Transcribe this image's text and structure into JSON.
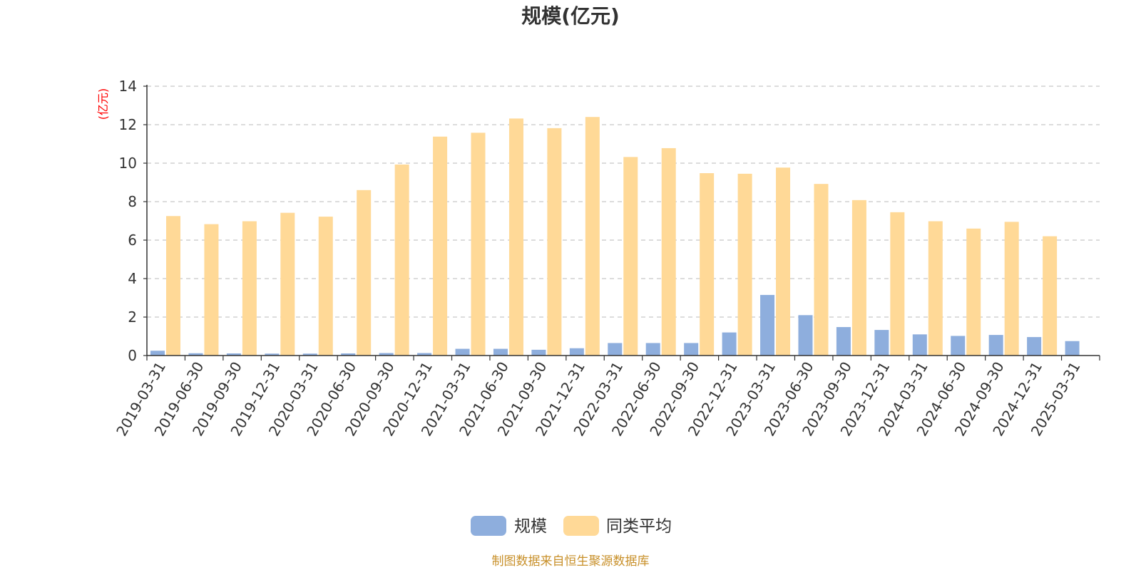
{
  "chart_data": {
    "type": "bar",
    "title": "规模(亿元)",
    "unit_label": "(亿元)",
    "source": "制图数据来自恒生聚源数据库",
    "categories": [
      "2019-03-31",
      "2019-06-30",
      "2019-09-30",
      "2019-12-31",
      "2020-03-31",
      "2020-06-30",
      "2020-09-30",
      "2020-12-31",
      "2021-03-31",
      "2021-06-30",
      "2021-09-30",
      "2021-12-31",
      "2022-03-31",
      "2022-06-30",
      "2022-09-30",
      "2022-12-31",
      "2023-03-31",
      "2023-06-30",
      "2023-09-30",
      "2023-12-31",
      "2024-03-31",
      "2024-06-30",
      "2024-09-30",
      "2024-12-31",
      "2025-03-31"
    ],
    "ylim": [
      0,
      14
    ],
    "yticks": [
      0,
      2,
      4,
      6,
      8,
      10,
      12,
      14
    ],
    "grid": true,
    "legend_position": "bottom-center",
    "series": [
      {
        "name": "规模",
        "color": "#8eaedd",
        "values": [
          0.25,
          0.12,
          0.11,
          0.1,
          0.1,
          0.11,
          0.13,
          0.13,
          0.35,
          0.35,
          0.3,
          0.38,
          0.65,
          0.65,
          0.65,
          1.2,
          3.15,
          2.1,
          1.48,
          1.33,
          1.1,
          1.02,
          1.07,
          0.96,
          0.75
        ]
      },
      {
        "name": "同类平均",
        "color": "#ffd997",
        "values": [
          7.25,
          6.83,
          6.98,
          7.42,
          7.22,
          8.6,
          9.93,
          11.38,
          11.58,
          12.32,
          11.82,
          12.4,
          10.32,
          10.78,
          9.48,
          9.45,
          9.77,
          8.92,
          8.08,
          7.45,
          6.98,
          6.6,
          6.95,
          6.2,
          null
        ]
      }
    ]
  }
}
